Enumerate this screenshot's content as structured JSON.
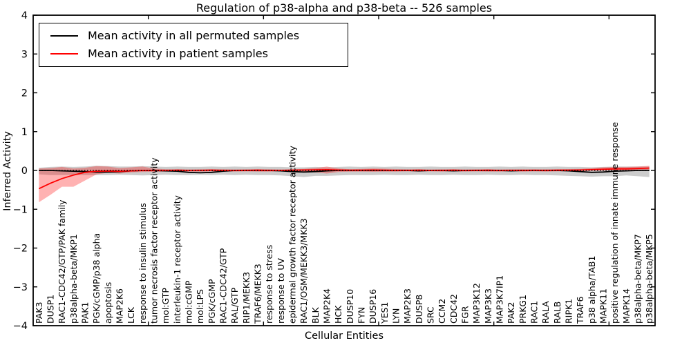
{
  "chart_data": {
    "type": "line",
    "title": "Regulation of p38-alpha and p38-beta -- 526 samples",
    "xlabel": "Cellular Entities",
    "ylabel": "Inferred Activity",
    "ylim": [
      -4,
      4
    ],
    "yticks": [
      -4,
      -3,
      -2,
      -1,
      0,
      1,
      2,
      3,
      4
    ],
    "xticks_top": [
      10,
      20,
      30,
      40,
      50
    ],
    "grid": false,
    "legend_position": "upper left",
    "zero_reference_line": {
      "y": 0,
      "style": "dotted",
      "color": "#000000"
    },
    "categories": [
      "PAK3",
      "DUSP1",
      "RAC1-CDC42/GTP/PAK family",
      "p38alpha-beta/MKP1",
      "PAK1",
      "PGK/cGMP/p38 alpha",
      "apoptosis",
      "MAP2K6",
      "LCK",
      "response to insulin stimulus",
      "tumor necrosis factor receptor activity",
      "mol:GTP",
      "interleukin-1 receptor activity",
      "mol:cGMP",
      "mol:LPS",
      "PGK/cGMP",
      "RAC1-CDC42/GTP",
      "RAL/GTP",
      "RIP1/MEKK3",
      "TRAF6/MEKK3",
      "response to stress",
      "response to UV",
      "epidermal growth factor receptor activity",
      "RAC1/OSM/MEKK3/MKK3",
      "BLK",
      "MAP2K4",
      "HCK",
      "DUSP10",
      "FYN",
      "DUSP16",
      "YES1",
      "LYN",
      "MAP2K3",
      "DUSP8",
      "SRC",
      "CCM2",
      "CDC42",
      "FGR",
      "MAP3K12",
      "MAP3K3",
      "MAP3K7IP1",
      "PAK2",
      "PRKG1",
      "RAC1",
      "RALA",
      "RALB",
      "RIPK1",
      "TRAF6",
      "p38 alpha/TAB1",
      "MAPK11",
      "positive regulation of innate immune response",
      "MAPK14",
      "p38alpha-beta/MKP7",
      "p38alpha-beta/MKP5"
    ],
    "series": [
      {
        "name": "Mean activity in all permuted samples",
        "color": "#000000",
        "band_color": "rgba(110,110,110,0.35)",
        "values": [
          0,
          0,
          -0.01,
          -0.02,
          -0.03,
          -0.04,
          -0.04,
          -0.03,
          -0.01,
          0,
          0,
          -0.01,
          -0.02,
          -0.05,
          -0.06,
          -0.05,
          -0.02,
          0,
          0,
          0,
          0,
          -0.01,
          -0.03,
          -0.04,
          -0.03,
          -0.01,
          0,
          0,
          0,
          0,
          0,
          0,
          0,
          -0.01,
          0,
          0,
          -0.01,
          0,
          0,
          0,
          0,
          -0.01,
          0,
          0,
          0,
          0,
          -0.01,
          -0.03,
          -0.05,
          -0.04,
          -0.02,
          -0.01,
          0,
          0
        ],
        "band_upper": [
          0.07,
          0.09,
          0.1,
          0.09,
          0.1,
          0.12,
          0.11,
          0.1,
          0.1,
          0.11,
          0.1,
          0.09,
          0.1,
          0.09,
          0.09,
          0.1,
          0.09,
          0.1,
          0.09,
          0.1,
          0.09,
          0.09,
          0.08,
          0.08,
          0.09,
          0.08,
          0.09,
          0.1,
          0.09,
          0.1,
          0.09,
          0.1,
          0.09,
          0.09,
          0.1,
          0.09,
          0.09,
          0.1,
          0.09,
          0.09,
          0.1,
          0.09,
          0.1,
          0.09,
          0.09,
          0.1,
          0.09,
          0.09,
          0.08,
          0.09,
          0.1,
          0.1,
          0.1,
          0.1
        ],
        "band_lower": [
          -0.1,
          -0.12,
          -0.12,
          -0.11,
          -0.12,
          -0.12,
          -0.12,
          -0.11,
          -0.12,
          -0.13,
          -0.12,
          -0.11,
          -0.12,
          -0.12,
          -0.11,
          -0.12,
          -0.11,
          -0.12,
          -0.11,
          -0.12,
          -0.12,
          -0.13,
          -0.15,
          -0.17,
          -0.14,
          -0.14,
          -0.13,
          -0.12,
          -0.12,
          -0.12,
          -0.11,
          -0.12,
          -0.12,
          -0.11,
          -0.12,
          -0.12,
          -0.11,
          -0.12,
          -0.12,
          -0.11,
          -0.12,
          -0.12,
          -0.11,
          -0.12,
          -0.12,
          -0.13,
          -0.14,
          -0.15,
          -0.16,
          -0.15,
          -0.15,
          -0.13,
          -0.15,
          -0.17
        ]
      },
      {
        "name": "Mean activity in patient samples",
        "color": "#ff0000",
        "band_color": "rgba(255,0,0,0.30)",
        "values": [
          -0.47,
          -0.33,
          -0.21,
          -0.12,
          -0.05,
          -0.02,
          -0.015,
          -0.02,
          -0.01,
          0,
          0,
          0,
          0.005,
          0,
          0,
          0.005,
          0,
          0,
          0,
          0.005,
          0,
          0,
          0.005,
          0.01,
          0.015,
          0.02,
          0.01,
          0.005,
          0.005,
          0.01,
          0.005,
          0,
          0,
          0.005,
          0,
          0,
          0.005,
          0,
          0,
          0.005,
          0,
          0,
          0,
          0.005,
          0,
          0.005,
          0.005,
          0.01,
          0.02,
          0.03,
          0.04,
          0.04,
          0.05,
          0.06
        ],
        "band_upper": [
          0.05,
          0.06,
          0.09,
          0.05,
          0.07,
          0.11,
          0.1,
          0.06,
          0.08,
          0.1,
          0.05,
          0.03,
          0.03,
          0.025,
          0.03,
          0.035,
          0.03,
          0.025,
          0.03,
          0.035,
          0.03,
          0.025,
          0.03,
          0.04,
          0.06,
          0.1,
          0.05,
          0.03,
          0.04,
          0.05,
          0.045,
          0.035,
          0.03,
          0.03,
          0.025,
          0.03,
          0.03,
          0.025,
          0.03,
          0.03,
          0.025,
          0.03,
          0.03,
          0.025,
          0.03,
          0.03,
          0.035,
          0.04,
          0.06,
          0.08,
          0.09,
          0.09,
          0.1,
          0.12
        ],
        "band_lower": [
          -0.82,
          -0.63,
          -0.42,
          -0.42,
          -0.26,
          -0.1,
          -0.06,
          -0.08,
          -0.05,
          -0.04,
          -0.035,
          -0.03,
          -0.025,
          -0.03,
          -0.03,
          -0.025,
          -0.03,
          -0.03,
          -0.025,
          -0.03,
          -0.03,
          -0.025,
          -0.03,
          -0.035,
          -0.05,
          -0.08,
          -0.04,
          -0.03,
          -0.03,
          -0.035,
          -0.03,
          -0.03,
          -0.025,
          -0.03,
          -0.025,
          -0.03,
          -0.025,
          -0.03,
          -0.025,
          -0.03,
          -0.03,
          -0.025,
          -0.03,
          -0.025,
          -0.03,
          -0.025,
          -0.02,
          -0.01,
          0,
          0,
          0.01,
          0.01,
          0.01,
          0.02
        ]
      }
    ]
  },
  "colors": {
    "frame": "#000000",
    "background": "#ffffff",
    "permuted_line": "#000000",
    "patient_line": "#ff0000"
  }
}
